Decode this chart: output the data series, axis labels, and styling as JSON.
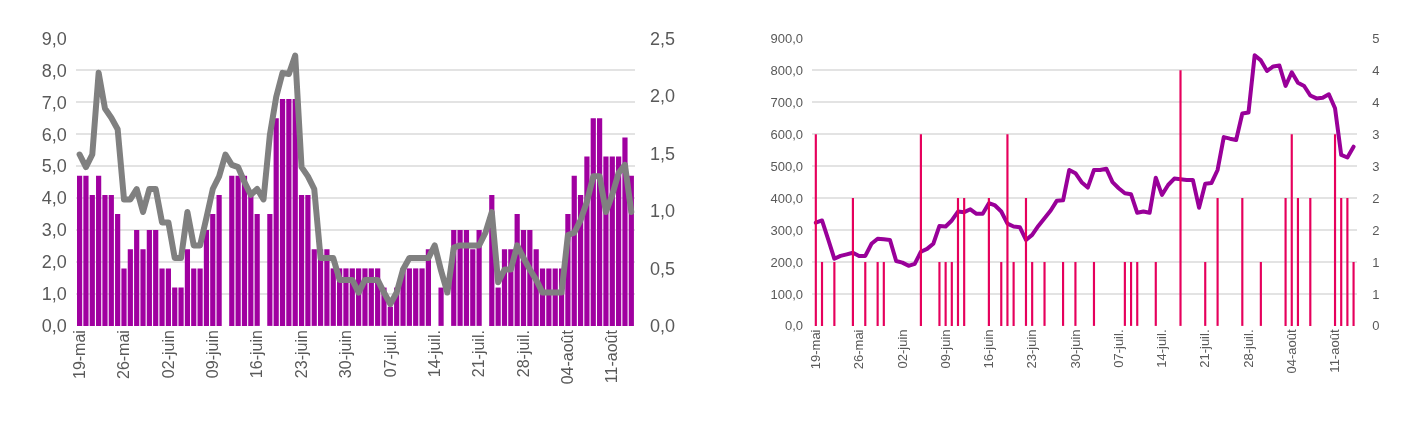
{
  "chart_data": [
    {
      "type": "bar",
      "grid": "y",
      "categories": [
        "19-mai",
        null,
        null,
        null,
        null,
        null,
        null,
        "26-mai",
        null,
        null,
        null,
        null,
        null,
        null,
        "02-juin",
        null,
        null,
        null,
        null,
        null,
        null,
        "09-juin",
        null,
        null,
        null,
        null,
        null,
        null,
        "16-juin",
        null,
        null,
        null,
        null,
        null,
        null,
        "23-juin",
        null,
        null,
        null,
        null,
        null,
        null,
        "30-juin",
        null,
        null,
        null,
        null,
        null,
        null,
        "07-juil.",
        null,
        null,
        null,
        null,
        null,
        null,
        "14-juil.",
        null,
        null,
        null,
        null,
        null,
        null,
        "21-juil.",
        null,
        null,
        null,
        null,
        null,
        null,
        "28-juil.",
        null,
        null,
        null,
        null,
        null,
        null,
        "04-août",
        null,
        null,
        null,
        null,
        null,
        null,
        "11-août",
        null,
        null,
        null
      ],
      "series": [
        {
          "color": "#a000a0",
          "values": [
            4.7,
            4.7,
            4.1,
            4.7,
            4.1,
            4.1,
            3.5,
            1.8,
            2.4,
            3.0,
            2.4,
            3.0,
            3.0,
            1.8,
            1.8,
            1.2,
            1.2,
            2.4,
            1.8,
            1.8,
            3.0,
            3.5,
            4.1,
            null,
            4.7,
            4.7,
            4.7,
            4.1,
            3.5,
            null,
            3.5,
            6.5,
            7.1,
            7.1,
            7.1,
            4.1,
            4.1,
            2.4,
            2.4,
            2.4,
            1.8,
            1.8,
            1.8,
            1.8,
            1.8,
            1.8,
            1.8,
            1.8,
            1.2,
            0.6,
            1.2,
            1.8,
            1.8,
            1.8,
            1.8,
            2.4,
            null,
            1.2,
            null,
            3.0,
            3.0,
            3.0,
            2.4,
            3.0,
            null,
            4.1,
            1.2,
            2.4,
            2.4,
            3.5,
            3.0,
            3.0,
            2.4,
            1.8,
            1.8,
            1.8,
            1.8,
            3.5,
            4.7,
            4.1,
            5.3,
            6.5,
            6.5,
            5.3,
            5.3,
            5.3,
            5.9,
            4.7
          ]
        },
        {
          "type": "line",
          "axis": "y2",
          "color": "#808080",
          "values": [
            1.49,
            1.38,
            1.49,
            2.2,
            1.89,
            1.81,
            1.71,
            1.1,
            1.1,
            1.19,
            0.99,
            1.19,
            1.19,
            0.9,
            0.9,
            0.59,
            0.59,
            0.99,
            0.7,
            0.7,
            0.94,
            1.19,
            1.3,
            1.49,
            1.4,
            1.38,
            1.25,
            1.14,
            1.19,
            1.1,
            1.66,
            1.99,
            2.2,
            2.19,
            2.35,
            1.38,
            1.3,
            1.19,
            0.59,
            0.59,
            0.59,
            0.4,
            0.4,
            0.4,
            0.29,
            0.4,
            0.4,
            0.4,
            0.29,
            0.19,
            0.29,
            0.49,
            0.59,
            0.59,
            0.59,
            0.59,
            0.7,
            0.48,
            0.29,
            0.68,
            0.7,
            0.7,
            0.7,
            0.7,
            0.81,
            0.99,
            0.38,
            0.49,
            0.49,
            0.7,
            0.59,
            0.49,
            0.4,
            0.29,
            0.29,
            0.29,
            0.29,
            0.79,
            0.81,
            0.92,
            1.08,
            1.3,
            1.3,
            0.99,
            1.14,
            1.33,
            1.4,
            0.99
          ]
        }
      ],
      "ylim": [
        0,
        9
      ],
      "yticks": [
        {
          "value": 0,
          "label": "0,0"
        },
        {
          "value": 1,
          "label": "1,0"
        },
        {
          "value": 2,
          "label": "2,0"
        },
        {
          "value": 3,
          "label": "3,0"
        },
        {
          "value": 4,
          "label": "4,0"
        },
        {
          "value": 5,
          "label": "5,0"
        },
        {
          "value": 6,
          "label": "6,0"
        },
        {
          "value": 7,
          "label": "7,0"
        },
        {
          "value": 8,
          "label": "8,0"
        },
        {
          "value": 9,
          "label": "9,0"
        }
      ],
      "y2lim": [
        0,
        2.5
      ],
      "y2ticks": [
        {
          "value": 0,
          "label": "0,0"
        },
        {
          "value": 0.5,
          "label": "0,5"
        },
        {
          "value": 1,
          "label": "1,0"
        },
        {
          "value": 1.5,
          "label": "1,5"
        },
        {
          "value": 2,
          "label": "2,0"
        },
        {
          "value": 2.5,
          "label": "2,5"
        }
      ]
    },
    {
      "type": "bar",
      "grid": "y",
      "categories": [
        "19-mai",
        null,
        null,
        null,
        null,
        null,
        null,
        "26-mai",
        null,
        null,
        null,
        null,
        null,
        null,
        "02-juin",
        null,
        null,
        null,
        null,
        null,
        null,
        "09-juin",
        null,
        null,
        null,
        null,
        null,
        null,
        "16-juin",
        null,
        null,
        null,
        null,
        null,
        null,
        "23-juin",
        null,
        null,
        null,
        null,
        null,
        null,
        "30-juin",
        null,
        null,
        null,
        null,
        null,
        null,
        "07-juil.",
        null,
        null,
        null,
        null,
        null,
        null,
        "14-juil.",
        null,
        null,
        null,
        null,
        null,
        null,
        "21-juil.",
        null,
        null,
        null,
        null,
        null,
        null,
        "28-juil.",
        null,
        null,
        null,
        null,
        null,
        null,
        "04-août",
        null,
        null,
        null,
        null,
        null,
        null,
        "11-août",
        null,
        null,
        null
      ],
      "series": [
        {
          "axis": "y2",
          "color": "#e6005c",
          "values": [
            3,
            1,
            0,
            1,
            0,
            0,
            2,
            0,
            1,
            0,
            1,
            1,
            0,
            0,
            0,
            0,
            0,
            3,
            0,
            0,
            1,
            1,
            1,
            2,
            2,
            0,
            0,
            0,
            2,
            0,
            1,
            3,
            1,
            0,
            2,
            1,
            0,
            1,
            0,
            0,
            1,
            0,
            1,
            0,
            0,
            1,
            0,
            0,
            0,
            0,
            1,
            1,
            1,
            0,
            0,
            1,
            0,
            0,
            0,
            4,
            0,
            0,
            0,
            1,
            0,
            2,
            0,
            0,
            0,
            2,
            0,
            0,
            1,
            0,
            0,
            0,
            2,
            3,
            2,
            0,
            2,
            0,
            0,
            0,
            3,
            2,
            2,
            1
          ]
        },
        {
          "type": "line",
          "color": "#990099",
          "values": [
            323,
            330,
            271,
            210,
            219,
            224,
            229,
            219,
            219,
            257,
            273,
            271,
            269,
            203,
            198,
            188,
            194,
            232,
            241,
            257,
            313,
            311,
            330,
            358,
            356,
            365,
            351,
            351,
            384,
            377,
            358,
            320,
            311,
            309,
            269,
            285,
            313,
            337,
            361,
            392,
            393,
            488,
            478,
            450,
            433,
            488,
            488,
            492,
            450,
            431,
            415,
            412,
            354,
            358,
            354,
            464,
            410,
            441,
            461,
            459,
            457,
            457,
            370,
            445,
            447,
            488,
            591,
            586,
            582,
            665,
            668,
            847,
            831,
            798,
            812,
            815,
            751,
            794,
            761,
            751,
            721,
            712,
            714,
            725,
            681,
            535,
            527,
            561
          ]
        }
      ],
      "ylim": [
        0,
        900
      ],
      "yticks": [
        {
          "value": 0,
          "label": "0,0"
        },
        {
          "value": 100,
          "label": "100,0"
        },
        {
          "value": 200,
          "label": "200,0"
        },
        {
          "value": 300,
          "label": "300,0"
        },
        {
          "value": 400,
          "label": "400,0"
        },
        {
          "value": 500,
          "label": "500,0"
        },
        {
          "value": 600,
          "label": "600,0"
        },
        {
          "value": 700,
          "label": "700,0"
        },
        {
          "value": 800,
          "label": "800,0"
        },
        {
          "value": 900,
          "label": "900,0"
        }
      ],
      "y2lim": [
        0,
        4.5
      ],
      "y2ticks": [
        0,
        {
          "value": 0.5,
          "label": "1"
        },
        1,
        {
          "value": 1.5,
          "label": "2"
        },
        2,
        {
          "value": 2.5,
          "label": "3"
        },
        3,
        {
          "value": 3.5,
          "label": "4"
        },
        4,
        {
          "value": 4.5,
          "label": "5"
        }
      ]
    }
  ]
}
